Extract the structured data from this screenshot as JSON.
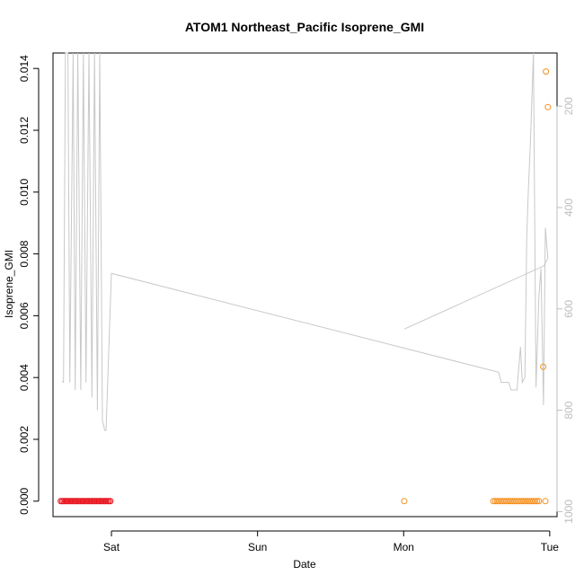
{
  "chart_data": {
    "type": "scatter",
    "title": "ATOM1 Northeast_Pacific Isoprene_GMI",
    "xlabel": "Date",
    "ylabel": "Isoprene_GMI",
    "x_ticks": [
      "Sat",
      "Sun",
      "Mon",
      "Tue"
    ],
    "x_tick_days": [
      1,
      2,
      3,
      4
    ],
    "x_range_days": [
      0.6,
      4.05
    ],
    "ylim": [
      -0.0005,
      0.0145
    ],
    "y_ticks": [
      "0.000",
      "0.002",
      "0.004",
      "0.006",
      "0.008",
      "0.010",
      "0.012",
      "0.014"
    ],
    "y_tick_values": [
      0,
      0.002,
      0.004,
      0.006,
      0.008,
      0.01,
      0.012,
      0.014
    ],
    "y2_ticks": [
      "200",
      "400",
      "600",
      "800",
      "1000"
    ],
    "y2_tick_values": [
      200,
      400,
      600,
      800,
      1000
    ],
    "y2lim": [
      1010,
      95
    ],
    "pressure_line_color": "#c8c8c8",
    "series": [
      {
        "color": "#e8141e",
        "points": [
          [
            0.653,
            0
          ],
          [
            0.663,
            0
          ],
          [
            0.673,
            0
          ],
          [
            0.683,
            0
          ],
          [
            0.693,
            0
          ],
          [
            0.703,
            0
          ],
          [
            0.713,
            0
          ],
          [
            0.723,
            0
          ],
          [
            0.733,
            0
          ],
          [
            0.743,
            0
          ],
          [
            0.753,
            0
          ],
          [
            0.763,
            0
          ],
          [
            0.773,
            0
          ],
          [
            0.783,
            0
          ],
          [
            0.793,
            0
          ],
          [
            0.803,
            0
          ],
          [
            0.813,
            0
          ],
          [
            0.823,
            0
          ],
          [
            0.833,
            0
          ],
          [
            0.843,
            0
          ],
          [
            0.853,
            0
          ],
          [
            0.863,
            0
          ],
          [
            0.873,
            0
          ],
          [
            0.883,
            0
          ],
          [
            0.893,
            0
          ],
          [
            0.903,
            0
          ],
          [
            0.913,
            0
          ],
          [
            0.923,
            0
          ],
          [
            0.933,
            0
          ],
          [
            0.943,
            0
          ],
          [
            0.953,
            0
          ],
          [
            0.963,
            0
          ],
          [
            0.973,
            0
          ],
          [
            0.983,
            0
          ],
          [
            0.993,
            0
          ]
        ]
      },
      {
        "color": "#f5901e",
        "points": [
          [
            3.004,
            0
          ],
          [
            3.614,
            0
          ],
          [
            3.627,
            0
          ],
          [
            3.64,
            0
          ],
          [
            3.653,
            0
          ],
          [
            3.666,
            0
          ],
          [
            3.679,
            0
          ],
          [
            3.692,
            0
          ],
          [
            3.705,
            0
          ],
          [
            3.718,
            0
          ],
          [
            3.731,
            0
          ],
          [
            3.744,
            0
          ],
          [
            3.757,
            0
          ],
          [
            3.77,
            0
          ],
          [
            3.783,
            0
          ],
          [
            3.796,
            0
          ],
          [
            3.809,
            0
          ],
          [
            3.822,
            0
          ],
          [
            3.835,
            0
          ],
          [
            3.848,
            0
          ],
          [
            3.861,
            0
          ],
          [
            3.874,
            0
          ],
          [
            3.887,
            0
          ],
          [
            3.9,
            0
          ],
          [
            3.913,
            0
          ],
          [
            3.926,
            0
          ],
          [
            3.97,
            0
          ],
          [
            3.955,
            0.00435
          ],
          [
            3.974,
            0.0139
          ],
          [
            3.987,
            0.01275
          ]
        ]
      }
    ],
    "pressure_trace": [
      [
        0.662,
        743
      ],
      [
        0.672,
        745
      ],
      [
        0.685,
        95
      ],
      [
        0.702,
        95
      ],
      [
        0.715,
        745
      ],
      [
        0.738,
        95
      ],
      [
        0.752,
        760
      ],
      [
        0.77,
        95
      ],
      [
        0.79,
        760
      ],
      [
        0.808,
        95
      ],
      [
        0.826,
        745
      ],
      [
        0.846,
        95
      ],
      [
        0.866,
        775
      ],
      [
        0.884,
        95
      ],
      [
        0.904,
        800
      ],
      [
        0.92,
        95
      ],
      [
        0.938,
        820
      ],
      [
        0.954,
        840
      ],
      [
        0.963,
        840
      ],
      [
        1.0,
        530
      ],
      [
        3.65,
        725
      ],
      [
        3.668,
        745
      ],
      [
        3.72,
        745
      ],
      [
        3.735,
        760
      ],
      [
        3.776,
        760
      ],
      [
        3.8,
        675
      ],
      [
        3.812,
        745
      ],
      [
        3.83,
        735
      ],
      [
        3.843,
        455
      ],
      [
        3.855,
        355
      ],
      [
        3.868,
        270
      ],
      [
        3.888,
        95
      ],
      [
        3.906,
        755
      ],
      [
        3.926,
        575
      ],
      [
        3.94,
        520
      ],
      [
        3.957,
        790
      ],
      [
        3.97,
        440
      ],
      [
        3.987,
        500
      ],
      [
        3.96,
        515
      ],
      [
        3.004,
        640
      ]
    ]
  }
}
